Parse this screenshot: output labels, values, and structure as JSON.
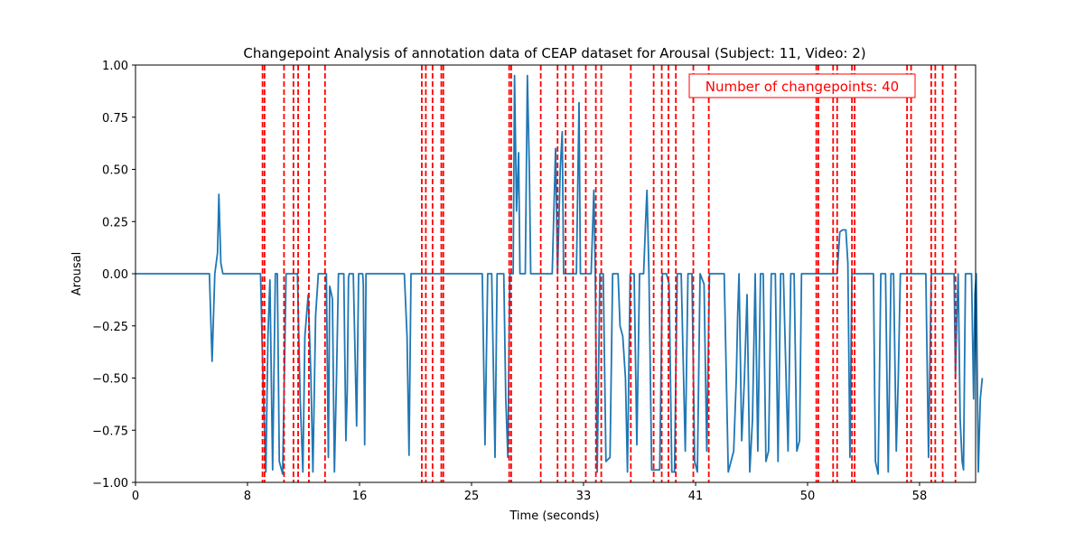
{
  "chart_data": {
    "type": "line",
    "title": "Changepoint Analysis of annotation data of CEAP dataset for Arousal (Subject: 11, Video: 2)",
    "xlabel": "Time (seconds)",
    "ylabel": "Arousal",
    "xlim": [
      0,
      62.5
    ],
    "ylim": [
      -1.0,
      1.0
    ],
    "x_ticks": [
      0,
      8.33,
      16.67,
      25,
      33.33,
      41.67,
      50,
      58.33
    ],
    "x_tick_labels": [
      "0",
      "8",
      "16",
      "25",
      "33",
      "41",
      "50",
      "58"
    ],
    "y_ticks": [
      -1.0,
      -0.75,
      -0.5,
      -0.25,
      0.0,
      0.25,
      0.5,
      0.75,
      1.0
    ],
    "y_tick_labels": [
      "−1.00",
      "−0.75",
      "−0.50",
      "−0.25",
      "0.00",
      "0.25",
      "0.50",
      "0.75",
      "1.00"
    ],
    "grid": false,
    "series": [
      {
        "color": "#1f77b4",
        "points": [
          [
            0,
            0
          ],
          [
            5.5,
            0
          ],
          [
            5.7,
            -0.42
          ],
          [
            5.9,
            0
          ],
          [
            6.1,
            0.1
          ],
          [
            6.2,
            0.38
          ],
          [
            6.35,
            0.05
          ],
          [
            6.5,
            0
          ],
          [
            9.3,
            0
          ],
          [
            9.5,
            -0.55
          ],
          [
            9.7,
            -0.95
          ],
          [
            9.85,
            -0.3
          ],
          [
            10.0,
            -0.03
          ],
          [
            10.2,
            -0.94
          ],
          [
            10.4,
            0
          ],
          [
            10.55,
            0
          ],
          [
            10.7,
            -0.9
          ],
          [
            10.95,
            -0.96
          ],
          [
            11.2,
            0
          ],
          [
            12.05,
            0
          ],
          [
            12.25,
            -0.6
          ],
          [
            12.45,
            -0.95
          ],
          [
            12.6,
            -0.3
          ],
          [
            12.85,
            -0.1
          ],
          [
            13.05,
            -0.5
          ],
          [
            13.2,
            -0.95
          ],
          [
            13.4,
            -0.2
          ],
          [
            13.6,
            0
          ],
          [
            14.2,
            0
          ],
          [
            14.35,
            -0.88
          ],
          [
            14.45,
            -0.06
          ],
          [
            14.65,
            -0.12
          ],
          [
            14.8,
            -0.95
          ],
          [
            14.95,
            -0.5
          ],
          [
            15.1,
            0
          ],
          [
            15.5,
            0
          ],
          [
            15.65,
            -0.8
          ],
          [
            15.75,
            -0.56
          ],
          [
            15.85,
            -0.02
          ],
          [
            15.9,
            0
          ],
          [
            16.2,
            0
          ],
          [
            16.45,
            -0.73
          ],
          [
            16.6,
            0
          ],
          [
            16.9,
            0
          ],
          [
            16.95,
            -0.05
          ],
          [
            17.05,
            -0.82
          ],
          [
            17.15,
            0
          ],
          [
            20.0,
            0
          ],
          [
            20.2,
            -0.3
          ],
          [
            20.35,
            -0.87
          ],
          [
            20.5,
            0
          ],
          [
            25.8,
            0
          ],
          [
            26.0,
            -0.82
          ],
          [
            26.2,
            0
          ],
          [
            26.5,
            0
          ],
          [
            26.75,
            -0.88
          ],
          [
            26.9,
            0
          ],
          [
            27.4,
            0
          ],
          [
            27.55,
            -0.6
          ],
          [
            27.7,
            -0.88
          ],
          [
            27.85,
            0
          ],
          [
            28.1,
            0
          ],
          [
            28.2,
            0.95
          ],
          [
            28.35,
            0.3
          ],
          [
            28.5,
            0.58
          ],
          [
            28.6,
            0
          ],
          [
            29.0,
            0
          ],
          [
            29.15,
            0.95
          ],
          [
            29.3,
            0.5
          ],
          [
            29.4,
            0
          ],
          [
            31.0,
            0
          ],
          [
            31.25,
            0.6
          ],
          [
            31.4,
            0
          ],
          [
            31.6,
            0.5
          ],
          [
            31.75,
            0.68
          ],
          [
            31.85,
            0
          ],
          [
            32.8,
            0
          ],
          [
            33.0,
            0.82
          ],
          [
            33.1,
            0
          ],
          [
            33.9,
            0
          ],
          [
            34.1,
            0.4
          ],
          [
            34.2,
            0.02
          ],
          [
            34.35,
            -0.95
          ],
          [
            34.55,
            0
          ],
          [
            34.8,
            0
          ],
          [
            35.0,
            -0.9
          ],
          [
            35.3,
            -0.88
          ],
          [
            35.5,
            0
          ],
          [
            35.9,
            0
          ],
          [
            36.05,
            -0.25
          ],
          [
            36.25,
            -0.3
          ],
          [
            36.45,
            -0.5
          ],
          [
            36.6,
            -0.95
          ],
          [
            36.8,
            0
          ],
          [
            37.1,
            0
          ],
          [
            37.3,
            -0.82
          ],
          [
            37.5,
            0
          ],
          [
            37.8,
            0
          ],
          [
            37.95,
            0.25
          ],
          [
            38.05,
            0.4
          ],
          [
            38.2,
            0
          ],
          [
            38.4,
            -0.94
          ],
          [
            38.7,
            -0.94
          ],
          [
            39.0,
            -0.94
          ],
          [
            39.2,
            0
          ],
          [
            39.5,
            0
          ],
          [
            39.7,
            -0.05
          ],
          [
            39.9,
            -0.95
          ],
          [
            40.1,
            -0.95
          ],
          [
            40.3,
            0
          ],
          [
            40.6,
            0
          ],
          [
            40.9,
            -0.85
          ],
          [
            41.1,
            0
          ],
          [
            41.4,
            0
          ],
          [
            41.6,
            -0.9
          ],
          [
            41.8,
            -0.95
          ],
          [
            42.0,
            0
          ],
          [
            42.3,
            -0.05
          ],
          [
            42.5,
            -0.85
          ],
          [
            42.7,
            0
          ],
          [
            43.8,
            0
          ],
          [
            44.1,
            -0.95
          ],
          [
            44.3,
            -0.9
          ],
          [
            44.5,
            -0.85
          ],
          [
            44.7,
            -0.5
          ],
          [
            44.8,
            -0.2
          ],
          [
            44.9,
            0
          ],
          [
            45.1,
            -0.8
          ],
          [
            45.3,
            -0.5
          ],
          [
            45.5,
            -0.1
          ],
          [
            45.7,
            -0.95
          ],
          [
            45.9,
            -0.7
          ],
          [
            46.1,
            0
          ],
          [
            46.3,
            -0.85
          ],
          [
            46.5,
            0
          ],
          [
            46.7,
            0
          ],
          [
            46.9,
            -0.9
          ],
          [
            47.1,
            -0.85
          ],
          [
            47.3,
            0
          ],
          [
            47.6,
            0
          ],
          [
            47.8,
            -0.9
          ],
          [
            48.0,
            0
          ],
          [
            48.2,
            0
          ],
          [
            48.4,
            -0.5
          ],
          [
            48.55,
            -0.85
          ],
          [
            48.75,
            0
          ],
          [
            49.0,
            0
          ],
          [
            49.2,
            -0.85
          ],
          [
            49.4,
            -0.8
          ],
          [
            49.55,
            0
          ],
          [
            52.2,
            0
          ],
          [
            52.4,
            0.2
          ],
          [
            52.6,
            0.21
          ],
          [
            52.85,
            0.21
          ],
          [
            53.0,
            0.05
          ],
          [
            53.15,
            -0.88
          ],
          [
            53.3,
            0
          ],
          [
            54.9,
            0
          ],
          [
            55.05,
            -0.9
          ],
          [
            55.25,
            -0.96
          ],
          [
            55.45,
            0
          ],
          [
            55.8,
            0
          ],
          [
            56.0,
            -0.95
          ],
          [
            56.2,
            0
          ],
          [
            56.4,
            0
          ],
          [
            56.6,
            -0.85
          ],
          [
            56.75,
            -0.5
          ],
          [
            56.9,
            0
          ],
          [
            58.8,
            0
          ],
          [
            59.0,
            -0.88
          ],
          [
            59.2,
            0
          ],
          [
            60.9,
            0
          ],
          [
            61.0,
            -0.5
          ],
          [
            61.1,
            -0.2
          ],
          [
            61.2,
            0
          ],
          [
            61.35,
            -0.7
          ],
          [
            61.5,
            -0.9
          ],
          [
            61.6,
            -0.94
          ],
          [
            61.75,
            0
          ],
          [
            62.2,
            0
          ],
          [
            62.35,
            -0.6
          ],
          [
            62.45,
            -0.1
          ],
          [
            62.55,
            0
          ],
          [
            62.7,
            -0.95
          ],
          [
            62.85,
            -0.6
          ],
          [
            63.0,
            -0.5
          ]
        ]
      }
    ],
    "changepoints": [
      9.45,
      9.6,
      11.05,
      11.75,
      12.1,
      12.9,
      14.1,
      21.3,
      21.6,
      22.1,
      22.75,
      22.9,
      27.8,
      27.95,
      30.15,
      31.4,
      32.0,
      32.55,
      33.5,
      34.25,
      34.65,
      36.85,
      38.55,
      39.15,
      39.65,
      40.2,
      41.5,
      42.65,
      50.65,
      50.8,
      51.9,
      52.2,
      53.3,
      53.5,
      57.4,
      57.7,
      59.2,
      59.5,
      60.05,
      61.0
    ],
    "changepoint_style": {
      "color": "#ff0000",
      "dash": "dashed"
    },
    "annotation": "Number of changepoints: 40",
    "annotation_color": "#ff0000"
  }
}
